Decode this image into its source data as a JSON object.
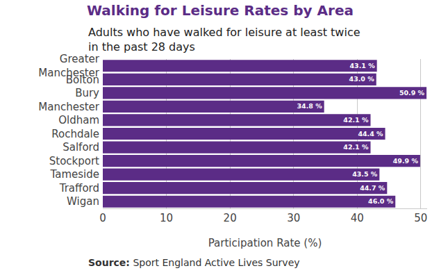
{
  "chart_data": {
    "type": "bar",
    "title": "Walking for Leisure Rates by Area",
    "subtitle": "Adults who have walked for leisure at least twice in the past 28 days",
    "x_label": "Participation Rate (%)",
    "source": {
      "label": "Source:",
      "text": "Sport England Active Lives Survey"
    },
    "orientation": "horizontal",
    "categories": [
      "Greater Manchester",
      "Bolton",
      "Bury",
      "Manchester",
      "Oldham",
      "Rochdale",
      "Salford",
      "Stockport",
      "Tameside",
      "Trafford",
      "Wigan"
    ],
    "values": [
      43.1,
      43.0,
      50.9,
      34.8,
      42.1,
      44.4,
      42.1,
      49.9,
      43.5,
      44.7,
      46.0
    ],
    "value_labels": [
      "43.1 %",
      "43.0 %",
      "50.9 %",
      "34.8 %",
      "42.1 %",
      "44.4 %",
      "42.1 %",
      "49.9 %",
      "43.5 %",
      "44.7 %",
      "46.0 %"
    ],
    "data_labels": true,
    "color": "#5b2c86",
    "xlim": [
      0,
      51
    ],
    "xticks": [
      0,
      10,
      20,
      30,
      40,
      50
    ],
    "grid": true
  }
}
